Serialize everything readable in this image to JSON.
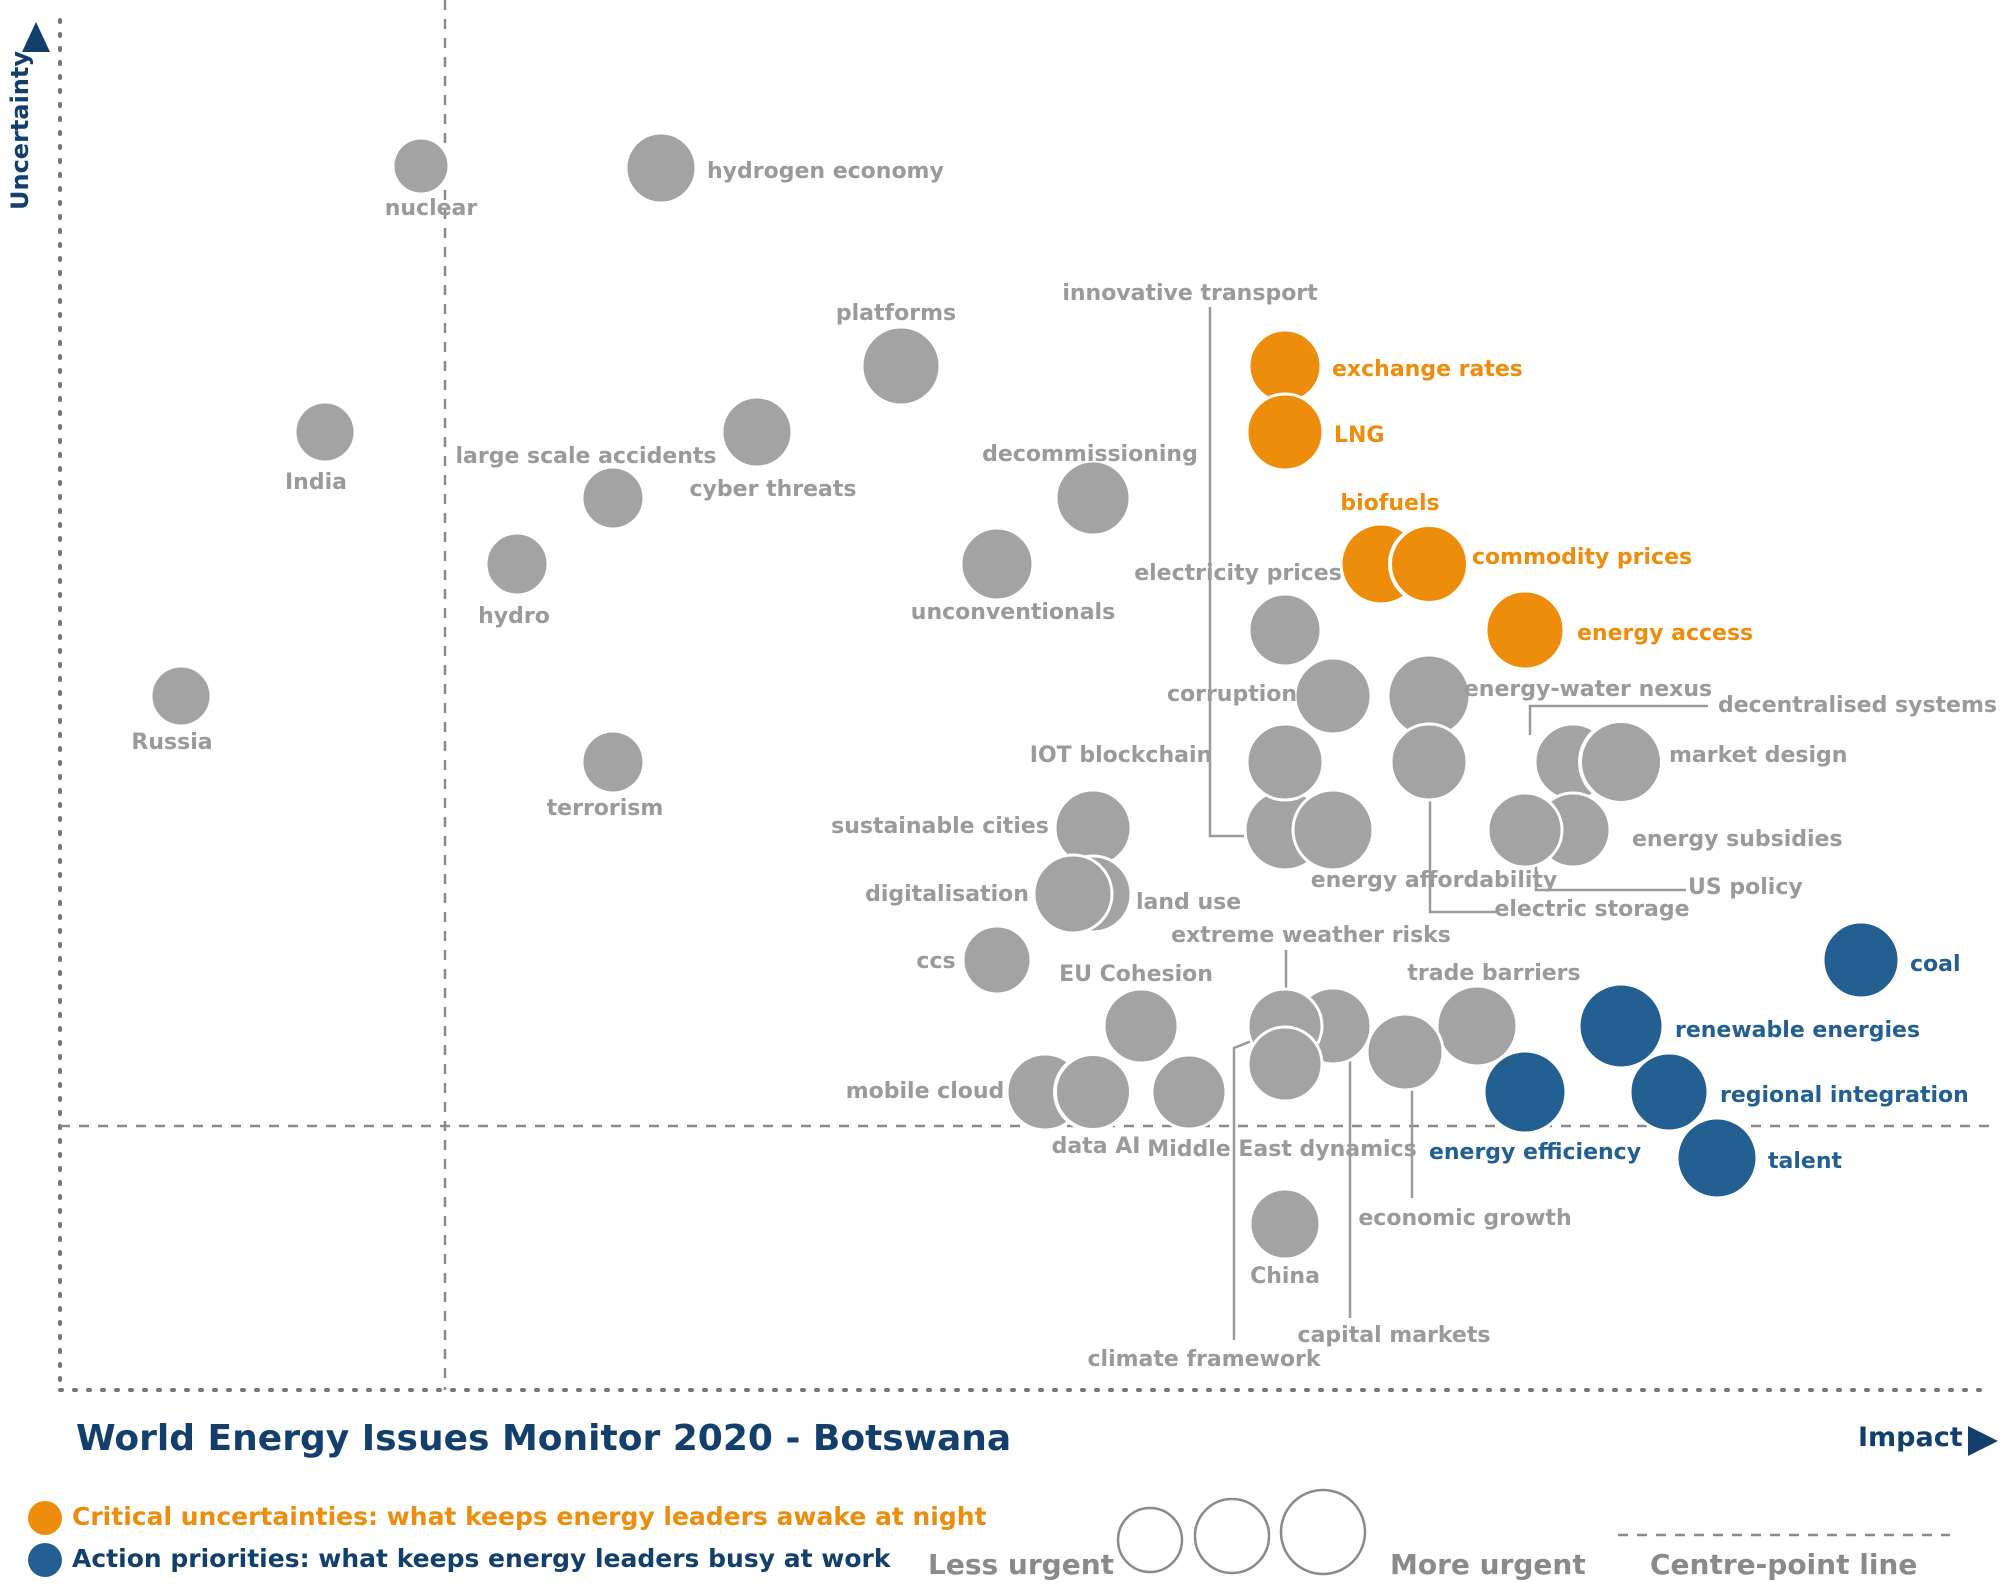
{
  "title": "World Energy Issues Monitor 2020 - Botswana",
  "colors": {
    "uncertainty": "#ee8c0b",
    "priority": "#245f92",
    "neutral": "#a3a3a3",
    "neutral_label": "#9a9a9a",
    "navy": "#123f6b"
  },
  "legend": {
    "uncertainty": "Critical uncertainties: what keeps energy leaders awake at night",
    "priority": "Action priorities: what keeps energy leaders busy at work",
    "less_urgent": "Less urgent",
    "more_urgent": "More urgent",
    "centre_line": "Centre-point  line"
  },
  "chart_data": {
    "type": "scatter",
    "xlabel": "Impact",
    "ylabel": "Uncertainty",
    "centre_point": {
      "x": 2.02,
      "y": 0.45
    },
    "xlim": [
      0,
      10
    ],
    "ylim": [
      0,
      8
    ],
    "points": [
      {
        "name": "nuclear",
        "x": 1.9,
        "y": 7.5,
        "size": 1,
        "category": "neutral"
      },
      {
        "name": "hydrogen economy",
        "x": 3.1,
        "y": 7.5,
        "size": 2,
        "category": "neutral"
      },
      {
        "name": "platforms",
        "x": 4.33,
        "y": 6.3,
        "size": 2.5,
        "category": "neutral"
      },
      {
        "name": "India",
        "x": 1.33,
        "y": 5.9,
        "size": 1,
        "category": "neutral"
      },
      {
        "name": "large scale accidents",
        "x": 2.85,
        "y": 5.5,
        "size": 1,
        "category": "neutral"
      },
      {
        "name": "cyber threats",
        "x": 3.6,
        "y": 5.9,
        "size": 2,
        "category": "neutral"
      },
      {
        "name": "hydro",
        "x": 2.35,
        "y": 5.1,
        "size": 1,
        "category": "neutral"
      },
      {
        "name": "decommissioning",
        "x": 5.3,
        "y": 5.5,
        "size": 2,
        "category": "neutral"
      },
      {
        "name": "unconventionals",
        "x": 4.8,
        "y": 5.1,
        "size": 2,
        "category": "neutral"
      },
      {
        "name": "Russia",
        "x": 0.6,
        "y": 4.3,
        "size": 1,
        "category": "neutral"
      },
      {
        "name": "terrorism",
        "x": 2.85,
        "y": 3.9,
        "size": 1,
        "category": "neutral"
      },
      {
        "name": "innovative transport",
        "x": 6.3,
        "y": 3.5,
        "size": 2,
        "category": "neutral"
      },
      {
        "name": "exchange rates",
        "x": 6.3,
        "y": 6.3,
        "size": 2,
        "category": "uncertainty"
      },
      {
        "name": "LNG",
        "x": 6.3,
        "y": 5.9,
        "size": 2,
        "category": "uncertainty"
      },
      {
        "name": "biofuels",
        "x": 6.8,
        "y": 5.1,
        "size": 2.5,
        "category": "uncertainty"
      },
      {
        "name": "commodity prices",
        "x": 7.05,
        "y": 5.1,
        "size": 2.5,
        "category": "uncertainty"
      },
      {
        "name": "energy access",
        "x": 7.55,
        "y": 4.7,
        "size": 2.5,
        "category": "uncertainty"
      },
      {
        "name": "electricity prices",
        "x": 6.3,
        "y": 4.7,
        "size": 1.5,
        "category": "neutral"
      },
      {
        "name": "corruption",
        "x": 6.55,
        "y": 4.3,
        "size": 2,
        "category": "neutral"
      },
      {
        "name": "energy-water nexus",
        "x": 7.05,
        "y": 4.3,
        "size": 2.5,
        "category": "neutral"
      },
      {
        "name": "IOT blockchain",
        "x": 6.3,
        "y": 3.9,
        "size": 2,
        "category": "neutral"
      },
      {
        "name": "energy affordability",
        "x": 7.05,
        "y": 3.9,
        "size": 2,
        "category": "neutral"
      },
      {
        "name": "decentralised systems",
        "x": 7.8,
        "y": 3.9,
        "size": 2,
        "category": "neutral"
      },
      {
        "name": "market design",
        "x": 8.05,
        "y": 3.9,
        "size": 2.5,
        "category": "neutral"
      },
      {
        "name": "energy subsidies",
        "x": 7.8,
        "y": 3.5,
        "size": 2,
        "category": "neutral"
      },
      {
        "name": "electric storage",
        "x": 6.55,
        "y": 3.5,
        "size": 2,
        "category": "neutral"
      },
      {
        "name": "US policy",
        "x": 7.55,
        "y": 3.5,
        "size": 2,
        "category": "neutral"
      },
      {
        "name": "sustainable cities",
        "x": 5.3,
        "y": 3.5,
        "size": 2,
        "category": "neutral"
      },
      {
        "name": "land use",
        "x": 5.3,
        "y": 3.1,
        "size": 2,
        "category": "neutral"
      },
      {
        "name": "digitalisation",
        "x": 5.2,
        "y": 3.1,
        "size": 2,
        "category": "neutral"
      },
      {
        "name": "ccs",
        "x": 4.8,
        "y": 2.7,
        "size": 1.5,
        "category": "neutral"
      },
      {
        "name": "EU Cohesion",
        "x": 5.55,
        "y": 2.3,
        "size": 1.5,
        "category": "neutral"
      },
      {
        "name": "extreme weather risks",
        "x": 6.55,
        "y": 2.3,
        "size": 2,
        "category": "neutral"
      },
      {
        "name": "capital markets",
        "x": 6.3,
        "y": 2.3,
        "size": 1.5,
        "category": "neutral"
      },
      {
        "name": "trade barriers",
        "x": 7.3,
        "y": 2.3,
        "size": 2,
        "category": "neutral"
      },
      {
        "name": "climate framework",
        "x": 6.3,
        "y": 2.05,
        "size": 1.5,
        "category": "neutral"
      },
      {
        "name": "economic growth",
        "x": 6.9,
        "y": 2.05,
        "size": 2,
        "category": "neutral"
      },
      {
        "name": "mobile cloud",
        "x": 5.05,
        "y": 1.9,
        "size": 2,
        "category": "neutral"
      },
      {
        "name": "data AI",
        "x": 5.3,
        "y": 1.9,
        "size": 2,
        "category": "neutral"
      },
      {
        "name": "Middle East dynamics",
        "x": 5.8,
        "y": 1.9,
        "size": 1.5,
        "category": "neutral"
      },
      {
        "name": "China",
        "x": 6.3,
        "y": 1.1,
        "size": 1,
        "category": "neutral"
      },
      {
        "name": "coal",
        "x": 9.35,
        "y": 2.7,
        "size": 2,
        "category": "priority"
      },
      {
        "name": "renewable energies",
        "x": 8.05,
        "y": 2.3,
        "size": 2.5,
        "category": "priority"
      },
      {
        "name": "energy efficiency",
        "x": 7.55,
        "y": 1.9,
        "size": 2.5,
        "category": "priority"
      },
      {
        "name": "regional integration",
        "x": 8.3,
        "y": 1.9,
        "size": 2,
        "category": "priority"
      },
      {
        "name": "talent",
        "x": 8.55,
        "y": 1.5,
        "size": 2,
        "category": "priority"
      }
    ]
  }
}
